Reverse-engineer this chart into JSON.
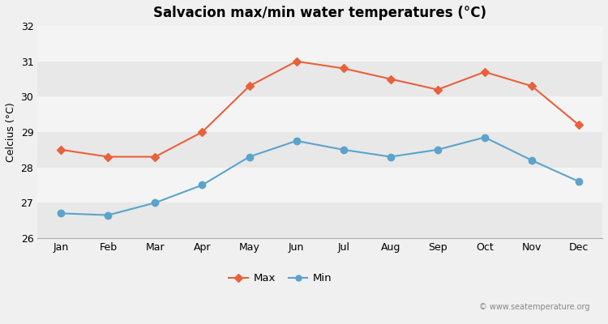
{
  "title": "Salvacion max/min water temperatures (°C)",
  "ylabel": "Celcius (°C)",
  "months": [
    "Jan",
    "Feb",
    "Mar",
    "Apr",
    "May",
    "Jun",
    "Jul",
    "Aug",
    "Sep",
    "Oct",
    "Nov",
    "Dec"
  ],
  "max_temps": [
    28.5,
    28.3,
    28.3,
    29.0,
    30.3,
    31.0,
    30.8,
    30.5,
    30.2,
    30.7,
    30.3,
    29.2
  ],
  "min_temps": [
    26.7,
    26.65,
    27.0,
    27.5,
    28.3,
    28.75,
    28.5,
    28.3,
    28.5,
    28.85,
    28.2,
    27.6
  ],
  "max_color": "#e8613c",
  "min_color": "#5ba3cb",
  "bg_color": "#f0f0f0",
  "band_colors": [
    "#e8e8e8",
    "#f4f4f4"
  ],
  "ylim": [
    26.0,
    32.0
  ],
  "yticks": [
    26,
    27,
    28,
    29,
    30,
    31,
    32
  ],
  "watermark": "© www.seatemperature.org",
  "legend_max": "Max",
  "legend_min": "Min",
  "title_fontsize": 12,
  "axis_fontsize": 9,
  "tick_fontsize": 9
}
